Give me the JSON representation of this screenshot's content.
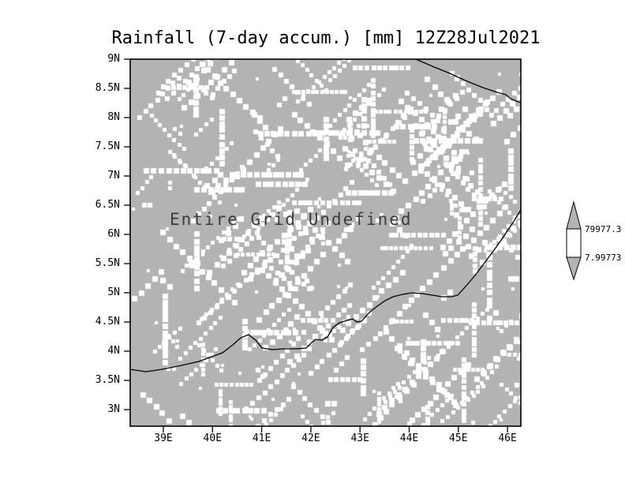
{
  "title": "Rainfall (7-day accum.) [mm] 12Z28Jul2021",
  "annotation": "Entire Grid Undefined",
  "axes": {
    "y_ticks": [
      "9N",
      "8.5N",
      "8N",
      "7.5N",
      "7N",
      "6.5N",
      "6N",
      "5.5N",
      "5N",
      "4.5N",
      "4N",
      "3.5N",
      "3N"
    ],
    "x_ticks": [
      "39E",
      "40E",
      "41E",
      "42E",
      "43E",
      "44E",
      "45E",
      "46E"
    ]
  },
  "colorbar": {
    "max_label": "79977.3",
    "min_label": "7.99773"
  },
  "colors": {
    "grid_fill": "#b3b3b3",
    "speckle": "#ffffff",
    "line": "#000000",
    "annotation_text": "#3c3c3c"
  },
  "chart_data": {
    "type": "heatmap",
    "title": "Rainfall (7-day accum.) [mm] 12Z28Jul2021",
    "xlabel": "",
    "ylabel": "",
    "x_tick_labels": [
      "39E",
      "40E",
      "41E",
      "42E",
      "43E",
      "44E",
      "45E",
      "46E"
    ],
    "y_tick_labels": [
      "9N",
      "8.5N",
      "8N",
      "7.5N",
      "7N",
      "6.5N",
      "6N",
      "5.5N",
      "5N",
      "4.5N",
      "4N",
      "3.5N",
      "3N"
    ],
    "x_range": [
      38.3,
      46.3
    ],
    "x_units": "degrees East",
    "y_range": [
      2.75,
      9.0
    ],
    "y_units": "degrees North",
    "values_status": "entire grid undefined (no valid data plotted)",
    "annotation": "Entire Grid Undefined",
    "colorbar_levels": [
      7.99773,
      79977.3
    ],
    "legend_position": "right",
    "grid": false
  }
}
